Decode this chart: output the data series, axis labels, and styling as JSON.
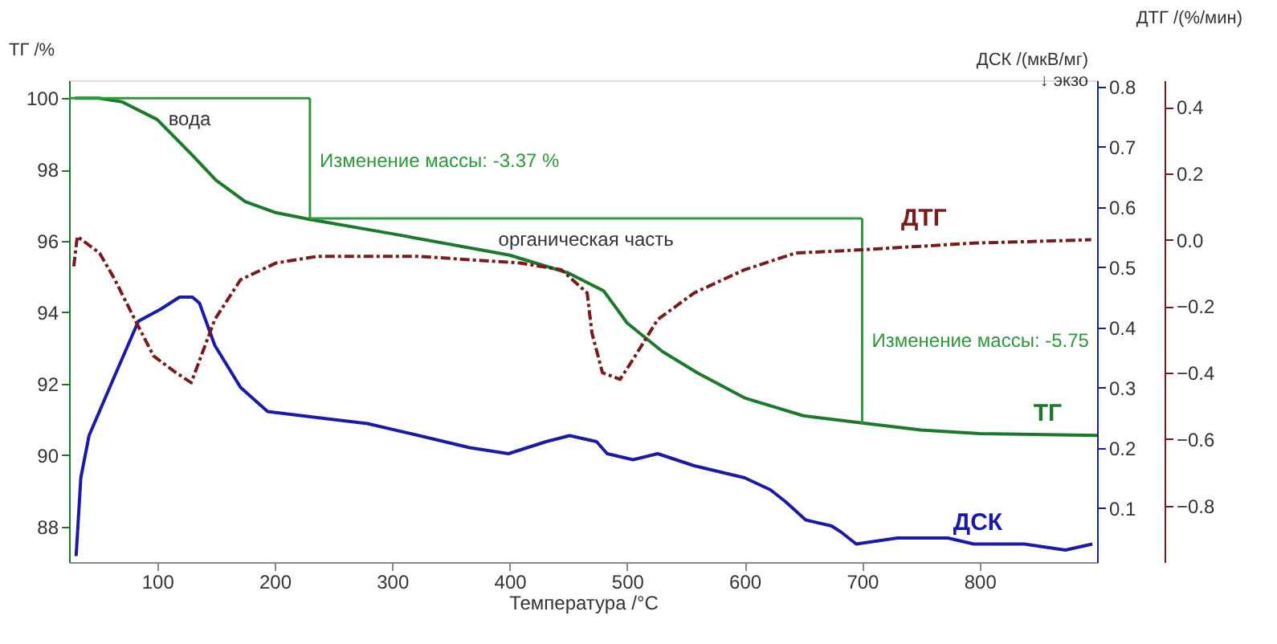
{
  "chart_data": {
    "type": "line",
    "xlabel": "Температура /°C",
    "ylabel": "ТГ /%",
    "y2label": "ДСК /(мкВ/мг)\n↓ экзо",
    "y3label": "ДТГ /(%/мин)",
    "xlim": [
      25,
      900
    ],
    "xticks": [
      100,
      200,
      300,
      400,
      500,
      600,
      700,
      800
    ],
    "ylim": [
      87,
      100.5
    ],
    "yticks": [
      88,
      90,
      92,
      94,
      96,
      98,
      100
    ],
    "y2lim": [
      0.01,
      0.81
    ],
    "y2ticks": [
      0.1,
      0.2,
      0.3,
      0.4,
      0.5,
      0.6,
      0.7,
      0.8
    ],
    "y3lim": [
      -0.97,
      0.48
    ],
    "y3ticks": [
      -0.8,
      -0.6,
      -0.4,
      -0.2,
      {
        "value": 0,
        "label": "0.0"
      },
      0.2,
      0.4
    ],
    "grid": false,
    "annotations": [
      "вода",
      {
        "text": "Изменение массы: -3.37 %",
        "x": 230,
        "y": 98.25
      },
      "органическая часть",
      {
        "text": "Изменение массы: -5.75",
        "x": 700,
        "y": 93.2
      }
    ],
    "series": [
      {
        "name": "ТГ",
        "axis": "y",
        "color": "#1a7a2a",
        "line_style": "solid",
        "x": [
          30,
          50,
          70,
          100,
          130,
          150,
          175,
          200,
          230,
          300,
          400,
          450,
          480,
          500,
          530,
          560,
          600,
          650,
          700,
          750,
          800,
          900
        ],
        "values": [
          100,
          100,
          99.9,
          99.4,
          98.4,
          97.7,
          97.1,
          96.8,
          96.6,
          96.2,
          95.6,
          95.1,
          94.6,
          93.7,
          92.9,
          92.3,
          91.6,
          91.1,
          90.9,
          90.7,
          90.6,
          90.55
        ]
      },
      {
        "axis": "y",
        "color": "#2a9a3a",
        "line_style": "solid",
        "x": [
          25,
          230
        ],
        "values": [
          100,
          100
        ]
      },
      {
        "axis": "y",
        "color": "#2a9a3a",
        "line_style": "solid",
        "x": [
          230,
          700
        ],
        "values": [
          96.63,
          96.63
        ]
      },
      {
        "axis": "y",
        "color": "#2a9a3a",
        "line_style": "solid",
        "x": [
          230,
          230
        ],
        "values": [
          100,
          96.63
        ]
      },
      {
        "axis": "y",
        "color": "#2a9a3a",
        "line_style": "solid",
        "x": [
          700,
          700
        ],
        "values": [
          96.63,
          90.88
        ]
      },
      {
        "name": "ДСК",
        "axis": "y2",
        "color": "#1a1aaa",
        "line_style": "solid",
        "x": [
          31,
          35,
          42,
          64,
          84,
          103,
          119,
          130,
          136,
          149,
          171,
          194,
          236,
          279,
          323,
          366,
          399,
          431,
          451,
          474,
          483,
          505,
          526,
          557,
          600,
          622,
          635,
          652,
          674,
          682,
          695,
          730,
          773,
          795,
          838,
          873,
          896
        ],
        "values": [
          0.02,
          0.15,
          0.22,
          0.32,
          0.41,
          0.43,
          0.45,
          0.45,
          0.44,
          0.37,
          0.3,
          0.26,
          0.25,
          0.24,
          0.22,
          0.2,
          0.19,
          0.21,
          0.22,
          0.21,
          0.19,
          0.18,
          0.19,
          0.17,
          0.15,
          0.13,
          0.11,
          0.08,
          0.07,
          0.06,
          0.04,
          0.05,
          0.05,
          0.04,
          0.04,
          0.03,
          0.04
        ]
      },
      {
        "name": "ДТГ",
        "axis": "y3",
        "color": "#7a1a1a",
        "line_style": "dashed",
        "x": [
          29,
          32,
          51,
          64,
          81,
          97,
          116,
          129,
          149,
          171,
          201,
          236,
          323,
          409,
          444,
          466,
          470,
          479,
          494,
          505,
          526,
          557,
          600,
          643,
          700,
          795,
          895
        ],
        "values": [
          -0.08,
          0.01,
          -0.04,
          -0.12,
          -0.24,
          -0.35,
          -0.4,
          -0.43,
          -0.24,
          -0.12,
          -0.07,
          -0.05,
          -0.05,
          -0.07,
          -0.09,
          -0.16,
          -0.28,
          -0.4,
          -0.42,
          -0.36,
          -0.24,
          -0.16,
          -0.09,
          -0.04,
          -0.03,
          -0.01,
          0.0
        ]
      }
    ]
  }
}
